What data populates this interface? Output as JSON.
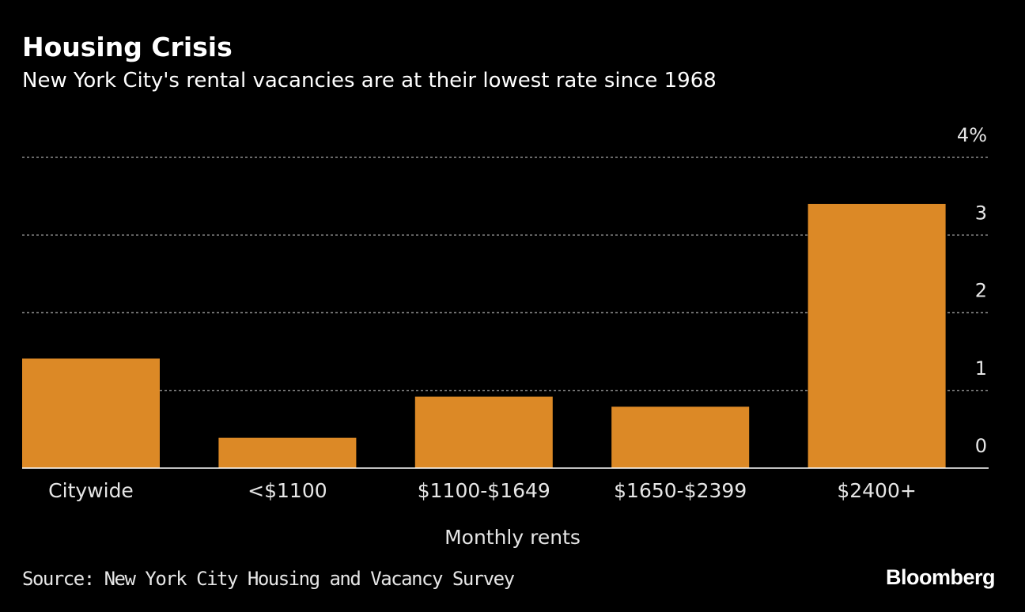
{
  "title": "Housing Crisis",
  "subtitle": "New York City's rental vacancies are at their lowest rate since 1968",
  "source": "Source: New York City Housing and Vacancy Survey",
  "brand": "Bloomberg",
  "colors": {
    "background": "#000000",
    "bar": "#dc8926",
    "grid": "#8c8c8c",
    "text": "#e6e6e6"
  },
  "chart_data": {
    "type": "bar",
    "title": "Housing Crisis",
    "subtitle": "New York City's rental vacancies are at their lowest rate since 1968",
    "categories": [
      "Citywide",
      "<$1100",
      "$1100-$1649",
      "$1650-$2399",
      "$2400+"
    ],
    "values": [
      1.41,
      0.39,
      0.92,
      0.79,
      3.4
    ],
    "xlabel": "Monthly rents",
    "ylabel": "",
    "ylim": [
      0,
      4
    ],
    "yticks": [
      0,
      1,
      2,
      3,
      4
    ],
    "ytick_labels": [
      "0",
      "1",
      "2",
      "3",
      "4%"
    ],
    "y_axis_side": "right",
    "grid": true,
    "legend": "none"
  }
}
